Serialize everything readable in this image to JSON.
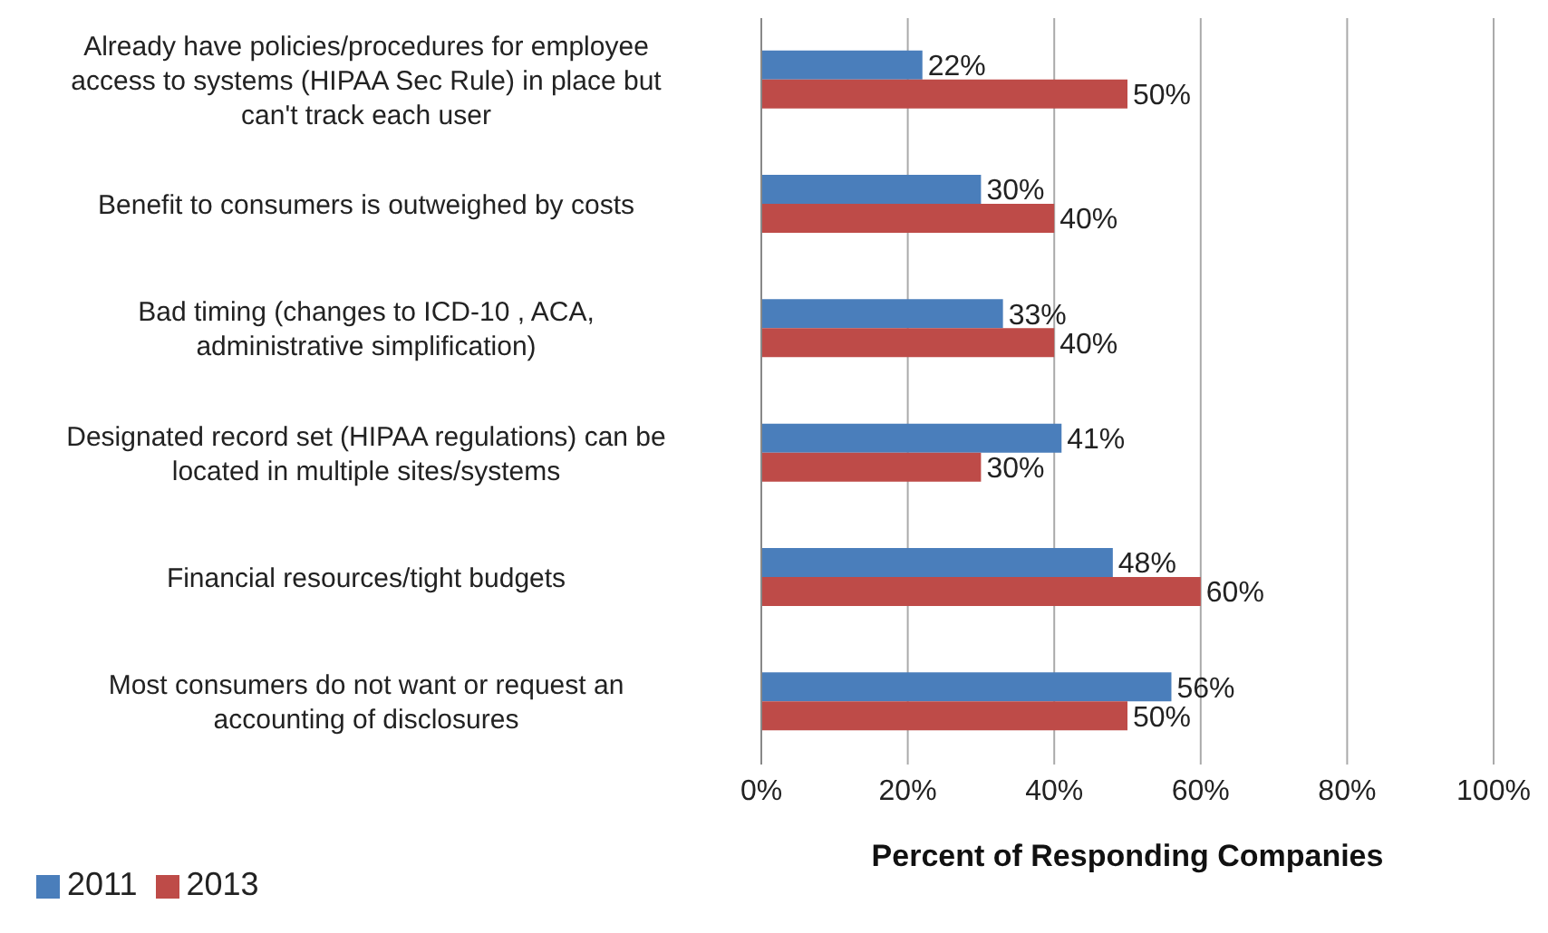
{
  "chart_data": {
    "type": "bar",
    "orientation": "horizontal",
    "xlabel": "Percent of Responding Companies",
    "categories": [
      "Already have policies/procedures for employee access to systems (HIPAA Sec Rule) in place but can't track each user",
      "Benefit to consumers is outweighed by costs",
      "Bad timing (changes to ICD-10 , ACA, administrative simplification)",
      "Designated record set (HIPAA regulations) can be located in multiple sites/systems",
      "Financial resources/tight budgets",
      "Most consumers do not want or request an accounting of disclosures"
    ],
    "series": [
      {
        "name": "2011",
        "color": "#4a7ebb",
        "values": [
          22,
          30,
          33,
          41,
          48,
          56
        ],
        "value_labels": [
          "22%",
          "30%",
          "33%",
          "41%",
          "48%",
          "56%"
        ]
      },
      {
        "name": "2013",
        "color": "#be4b48",
        "values": [
          50,
          40,
          40,
          30,
          60,
          50
        ],
        "value_labels": [
          "50%",
          "40%",
          "40%",
          "30%",
          "60%",
          "50%"
        ]
      }
    ],
    "xlim": [
      0,
      100
    ],
    "xticks": [
      {
        "value": 0,
        "label": "0%"
      },
      {
        "value": 20,
        "label": "20%"
      },
      {
        "value": 40,
        "label": "40%"
      },
      {
        "value": 60,
        "label": "60%"
      },
      {
        "value": 80,
        "label": "80%"
      },
      {
        "value": 100,
        "label": "100%"
      }
    ],
    "grid": "x",
    "legend": "bottom left"
  }
}
